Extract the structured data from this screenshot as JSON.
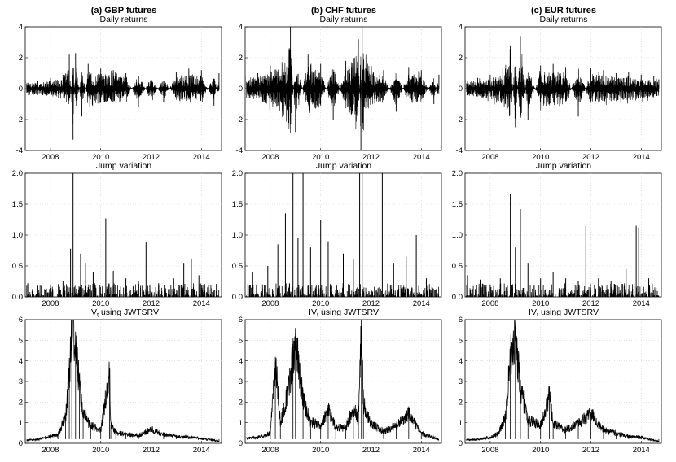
{
  "columns": [
    {
      "title": "(a) GBP futures"
    },
    {
      "title": "(b) CHF futures"
    },
    {
      "title": "(c) EUR futures"
    }
  ],
  "rows": [
    {
      "title": "Daily returns"
    },
    {
      "title": "Jump variation"
    },
    {
      "title_main": "IV",
      "title_sub": "t",
      "title_rest": " using JWTSRV"
    }
  ],
  "chart_data": [
    {
      "type": "line",
      "asset": "GBP futures",
      "panel": "Daily returns",
      "xlim": [
        2007.0,
        2014.8
      ],
      "ylim": [
        -4,
        4
      ],
      "xticks": [
        2008,
        2010,
        2012,
        2014
      ],
      "yticks": [
        -4,
        -2,
        0,
        2,
        4
      ],
      "x": [
        2007.0,
        2007.5,
        2008.0,
        2008.5,
        2008.75,
        2008.9,
        2009.0,
        2009.25,
        2009.5,
        2010.0,
        2010.5,
        2011.0,
        2011.5,
        2012.0,
        2012.5,
        2013.0,
        2013.5,
        2014.0,
        2014.5,
        2014.7
      ],
      "values": [
        0.6,
        0.5,
        0.7,
        0.9,
        2.2,
        -3.3,
        2.3,
        -1.8,
        1.6,
        1.3,
        1.2,
        1.0,
        -1.2,
        1.0,
        -0.9,
        1.1,
        1.3,
        1.2,
        -1.1,
        1.0
      ]
    },
    {
      "type": "line",
      "asset": "CHF futures",
      "panel": "Daily returns",
      "xlim": [
        2007.0,
        2014.8
      ],
      "ylim": [
        -4,
        4
      ],
      "xticks": [
        2008,
        2010,
        2012,
        2014
      ],
      "yticks": [
        -4,
        -2,
        0,
        2,
        4
      ],
      "x": [
        2007.0,
        2007.5,
        2008.0,
        2008.5,
        2008.8,
        2009.0,
        2009.5,
        2010.0,
        2010.5,
        2011.0,
        2011.5,
        2011.6,
        2011.65,
        2012.0,
        2012.5,
        2013.0,
        2013.5,
        2014.0,
        2014.5,
        2014.7
      ],
      "values": [
        0.8,
        1.0,
        1.5,
        2.1,
        4.0,
        -2.8,
        2.2,
        1.6,
        -2.0,
        1.8,
        3.2,
        -4.0,
        4.0,
        1.5,
        1.2,
        -1.5,
        1.4,
        1.2,
        -1.0,
        0.9
      ]
    },
    {
      "type": "line",
      "asset": "EUR futures",
      "panel": "Daily returns",
      "xlim": [
        2007.0,
        2014.8
      ],
      "ylim": [
        -4,
        4
      ],
      "xticks": [
        2008,
        2010,
        2012,
        2014
      ],
      "yticks": [
        -4,
        -2,
        0,
        2,
        4
      ],
      "x": [
        2007.0,
        2007.5,
        2008.0,
        2008.5,
        2008.8,
        2009.0,
        2009.2,
        2009.5,
        2010.0,
        2010.5,
        2011.0,
        2011.5,
        2012.0,
        2012.5,
        2013.0,
        2013.5,
        2014.0,
        2014.5,
        2014.7
      ],
      "values": [
        0.6,
        0.7,
        0.9,
        1.3,
        2.8,
        -2.5,
        3.4,
        -2.0,
        1.5,
        1.6,
        1.4,
        -1.8,
        1.3,
        1.2,
        1.0,
        1.1,
        0.9,
        0.8,
        0.6
      ]
    },
    {
      "type": "line",
      "asset": "GBP futures",
      "panel": "Jump variation",
      "xlim": [
        2007.0,
        2014.8
      ],
      "ylim": [
        0,
        2.0
      ],
      "xticks": [
        2008,
        2010,
        2012,
        2014
      ],
      "yticks": [
        0,
        0.5,
        1.0,
        1.5,
        2.0
      ],
      "spikes_x": [
        2007.1,
        2007.5,
        2008.0,
        2008.5,
        2008.8,
        2008.9,
        2009.2,
        2009.4,
        2009.7,
        2010.2,
        2010.5,
        2011.0,
        2011.5,
        2011.8,
        2012.3,
        2012.9,
        2013.3,
        2013.6,
        2013.9,
        2014.3
      ],
      "spikes_y": [
        0.22,
        0.18,
        0.2,
        0.25,
        0.78,
        2.0,
        0.7,
        0.55,
        0.4,
        1.27,
        0.42,
        0.3,
        0.25,
        0.88,
        0.22,
        0.3,
        0.55,
        0.62,
        0.35,
        0.2
      ]
    },
    {
      "type": "line",
      "asset": "CHF futures",
      "panel": "Jump variation",
      "xlim": [
        2007.0,
        2014.8
      ],
      "ylim": [
        0,
        2.0
      ],
      "xticks": [
        2008,
        2010,
        2012,
        2014
      ],
      "yticks": [
        0,
        0.5,
        1.0,
        1.5,
        2.0
      ],
      "spikes_x": [
        2007.3,
        2007.9,
        2008.3,
        2008.6,
        2008.9,
        2009.1,
        2009.3,
        2009.6,
        2010.0,
        2010.3,
        2010.9,
        2011.3,
        2011.55,
        2011.65,
        2012.0,
        2012.45,
        2012.9,
        2013.4,
        2013.8,
        2014.2
      ],
      "spikes_y": [
        0.4,
        0.5,
        0.85,
        1.35,
        2.0,
        0.95,
        2.0,
        0.8,
        1.25,
        0.9,
        0.7,
        0.6,
        2.0,
        2.0,
        0.6,
        2.0,
        0.55,
        0.65,
        1.0,
        0.3
      ]
    },
    {
      "type": "line",
      "asset": "EUR futures",
      "panel": "Jump variation",
      "xlim": [
        2007.0,
        2014.8
      ],
      "ylim": [
        0,
        2.0
      ],
      "xticks": [
        2008,
        2010,
        2012,
        2014
      ],
      "yticks": [
        0,
        0.5,
        1.0,
        1.5,
        2.0
      ],
      "spikes_x": [
        2007.1,
        2007.6,
        2008.0,
        2008.4,
        2008.8,
        2009.0,
        2009.2,
        2009.5,
        2010.0,
        2010.5,
        2011.0,
        2011.5,
        2011.8,
        2012.3,
        2012.8,
        2013.4,
        2013.8,
        2013.9,
        2014.3
      ],
      "spikes_y": [
        0.35,
        0.28,
        0.2,
        0.3,
        1.66,
        0.8,
        1.42,
        0.55,
        0.3,
        0.4,
        0.3,
        0.25,
        1.15,
        0.3,
        0.25,
        0.45,
        1.15,
        1.12,
        0.3
      ]
    },
    {
      "type": "line",
      "asset": "GBP futures",
      "panel": "IVt using JWTSRV",
      "xlim": [
        2007.0,
        2014.8
      ],
      "ylim": [
        0,
        6
      ],
      "xticks": [
        2008,
        2010,
        2012,
        2014
      ],
      "yticks": [
        0,
        1,
        2,
        3,
        4,
        5,
        6
      ],
      "x": [
        2007.0,
        2007.5,
        2008.0,
        2008.3,
        2008.6,
        2008.75,
        2008.85,
        2009.0,
        2009.15,
        2009.3,
        2009.6,
        2010.0,
        2010.35,
        2010.4,
        2010.6,
        2011.0,
        2011.5,
        2012.0,
        2012.5,
        2013.0,
        2013.5,
        2014.0,
        2014.5,
        2014.7
      ],
      "values": [
        0.15,
        0.2,
        0.35,
        0.45,
        1.3,
        3.5,
        6.0,
        4.9,
        3.0,
        1.5,
        0.9,
        0.7,
        3.6,
        0.9,
        0.55,
        0.45,
        0.4,
        0.7,
        0.45,
        0.35,
        0.3,
        0.25,
        0.15,
        0.1
      ]
    },
    {
      "type": "line",
      "asset": "CHF futures",
      "panel": "IVt using JWTSRV",
      "xlim": [
        2007.0,
        2014.8
      ],
      "ylim": [
        0,
        6
      ],
      "xticks": [
        2008,
        2010,
        2012,
        2014
      ],
      "yticks": [
        0,
        1,
        2,
        3,
        4,
        5,
        6
      ],
      "x": [
        2007.0,
        2007.5,
        2008.0,
        2008.2,
        2008.4,
        2008.7,
        2008.9,
        2009.0,
        2009.3,
        2009.6,
        2010.0,
        2010.3,
        2010.6,
        2011.0,
        2011.3,
        2011.5,
        2011.62,
        2011.7,
        2012.0,
        2012.5,
        2013.0,
        2013.5,
        2014.0,
        2014.5,
        2014.7
      ],
      "values": [
        0.25,
        0.3,
        0.5,
        4.2,
        1.0,
        2.6,
        4.3,
        5.3,
        2.2,
        1.1,
        0.9,
        1.7,
        0.8,
        0.8,
        1.8,
        1.2,
        6.0,
        2.0,
        1.0,
        0.6,
        0.9,
        1.5,
        0.5,
        0.3,
        0.2
      ]
    },
    {
      "type": "line",
      "asset": "EUR futures",
      "panel": "IVt using JWTSRV",
      "xlim": [
        2007.0,
        2014.8
      ],
      "ylim": [
        0,
        6
      ],
      "xticks": [
        2008,
        2010,
        2012,
        2014
      ],
      "yticks": [
        0,
        1,
        2,
        3,
        4,
        5,
        6
      ],
      "x": [
        2007.0,
        2007.5,
        2008.0,
        2008.3,
        2008.6,
        2008.8,
        2009.0,
        2009.2,
        2009.5,
        2010.0,
        2010.35,
        2010.5,
        2011.0,
        2011.5,
        2012.0,
        2012.5,
        2013.0,
        2013.5,
        2014.0,
        2014.5,
        2014.7
      ],
      "values": [
        0.15,
        0.2,
        0.3,
        0.5,
        1.3,
        4.3,
        5.6,
        2.8,
        1.2,
        0.9,
        2.4,
        1.0,
        0.7,
        1.0,
        1.5,
        0.7,
        0.5,
        0.35,
        0.3,
        0.15,
        0.1
      ]
    }
  ]
}
